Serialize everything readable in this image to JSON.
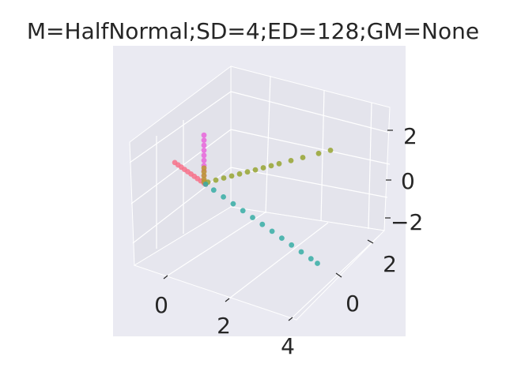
{
  "chart_data": {
    "type": "scatter",
    "projection": "3d",
    "title": "M=HalfNormal;SD=4;ED=128;GM=None",
    "xlim": [
      -1,
      4.3
    ],
    "ylim": [
      -3,
      3
    ],
    "zlim": [
      -3,
      3
    ],
    "x_ticks": [
      "0",
      "2",
      "4"
    ],
    "y_ticks": [
      "0",
      "2"
    ],
    "z_ticks": [
      "−2",
      "0",
      "2"
    ],
    "grid": true,
    "background": "#eaeaf2",
    "series": [
      {
        "color": "#f77189",
        "x": [
          -0.9,
          -0.8,
          -0.7,
          -0.6,
          -0.5,
          -0.4,
          -0.3,
          -0.2,
          -0.1,
          0.0,
          0.05
        ],
        "y": [
          0,
          0,
          0,
          0,
          0,
          0,
          0,
          0,
          0,
          0,
          0
        ],
        "z": [
          0,
          0,
          0,
          0,
          0,
          0,
          0,
          0,
          0,
          0,
          0
        ]
      },
      {
        "color": "#e866da",
        "x": [
          0,
          0,
          0,
          0,
          0,
          0,
          0,
          0,
          0,
          0
        ],
        "y": [
          0,
          0,
          0,
          0,
          0,
          0,
          0,
          0,
          0,
          0
        ],
        "z": [
          0.1,
          0.3,
          0.5,
          0.7,
          0.9,
          1.1,
          1.3,
          1.5,
          1.7,
          1.9
        ]
      },
      {
        "color": "#bb9832",
        "x": [
          0,
          0,
          0,
          0,
          0
        ],
        "y": [
          0,
          0,
          0,
          0,
          0
        ],
        "z": [
          0.05,
          0.15,
          0.3,
          0.45,
          0.6
        ]
      },
      {
        "color": "#97a431",
        "x": [
          0,
          0,
          0,
          0,
          0,
          0,
          0,
          0,
          0,
          0,
          0,
          0,
          0,
          0
        ],
        "y": [
          0.1,
          0.3,
          0.5,
          0.7,
          0.9,
          1.1,
          1.3,
          1.5,
          1.7,
          1.9,
          2.2,
          2.5,
          2.9,
          3.2
        ],
        "z": [
          0,
          0,
          0,
          0,
          0,
          0,
          0,
          0,
          0,
          0,
          0,
          0,
          0,
          0
        ]
      },
      {
        "color": "#36ada4",
        "x": [
          0.05,
          0.3,
          0.6,
          0.9,
          1.2,
          1.5,
          1.8,
          2.1,
          2.4,
          2.7,
          3.0,
          3.3,
          3.5
        ],
        "y": [
          0,
          0,
          0,
          0,
          0,
          0,
          0,
          0,
          0,
          0,
          0,
          0,
          0
        ],
        "z": [
          0,
          0,
          0,
          0,
          0,
          0,
          0,
          0,
          0,
          0,
          0,
          0,
          0
        ]
      }
    ]
  }
}
